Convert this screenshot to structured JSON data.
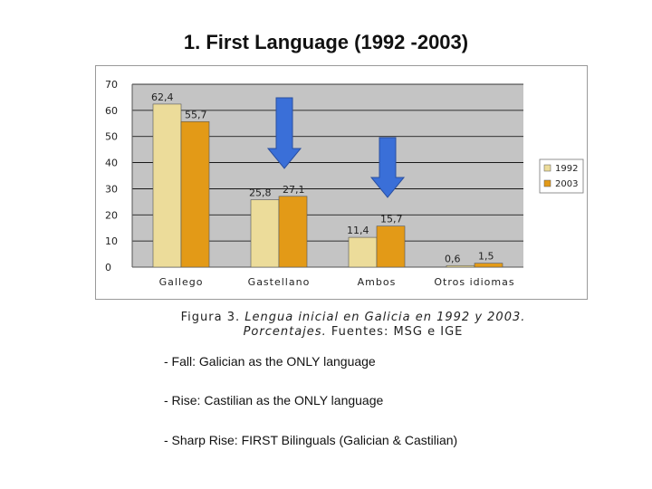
{
  "slide_title": "1. First Language (1992 -2003)",
  "chart_data": {
    "type": "bar",
    "categories": [
      "Gallego",
      "Gastellano",
      "Ambos",
      "Otros idiomas"
    ],
    "series": [
      {
        "name": "1992",
        "values": [
          62.4,
          25.8,
          11.4,
          0.6
        ],
        "labels": [
          "62,4",
          "25,8",
          "11,4",
          "0,6"
        ],
        "color": "#ecdc9a"
      },
      {
        "name": "2003",
        "values": [
          55.7,
          27.1,
          15.7,
          1.5
        ],
        "labels": [
          "55,7",
          "27,1",
          "15,7",
          "1,5"
        ],
        "color": "#e39a17"
      }
    ],
    "yticks": [
      "0",
      "10",
      "20",
      "30",
      "40",
      "50",
      "60",
      "70"
    ],
    "ylim": [
      0,
      70
    ],
    "grid": true,
    "legend_position": "right",
    "plot_background": "#c4c4c4",
    "arrow_color": "#3a6fd8"
  },
  "caption": {
    "line1_prefix": "Figura 3.",
    "line1_italic": "Lengua inicial en Galicia en 1992 y 2003.",
    "line2_italic": "Porcentajes.",
    "line2_rest": "Fuentes: MSG e IGE"
  },
  "bullets": [
    "- Fall: Galician as the ONLY language",
    "- Rise: Castilian as the ONLY language",
    "- Sharp Rise: FIRST Bilinguals (Galician & Castilian)"
  ]
}
